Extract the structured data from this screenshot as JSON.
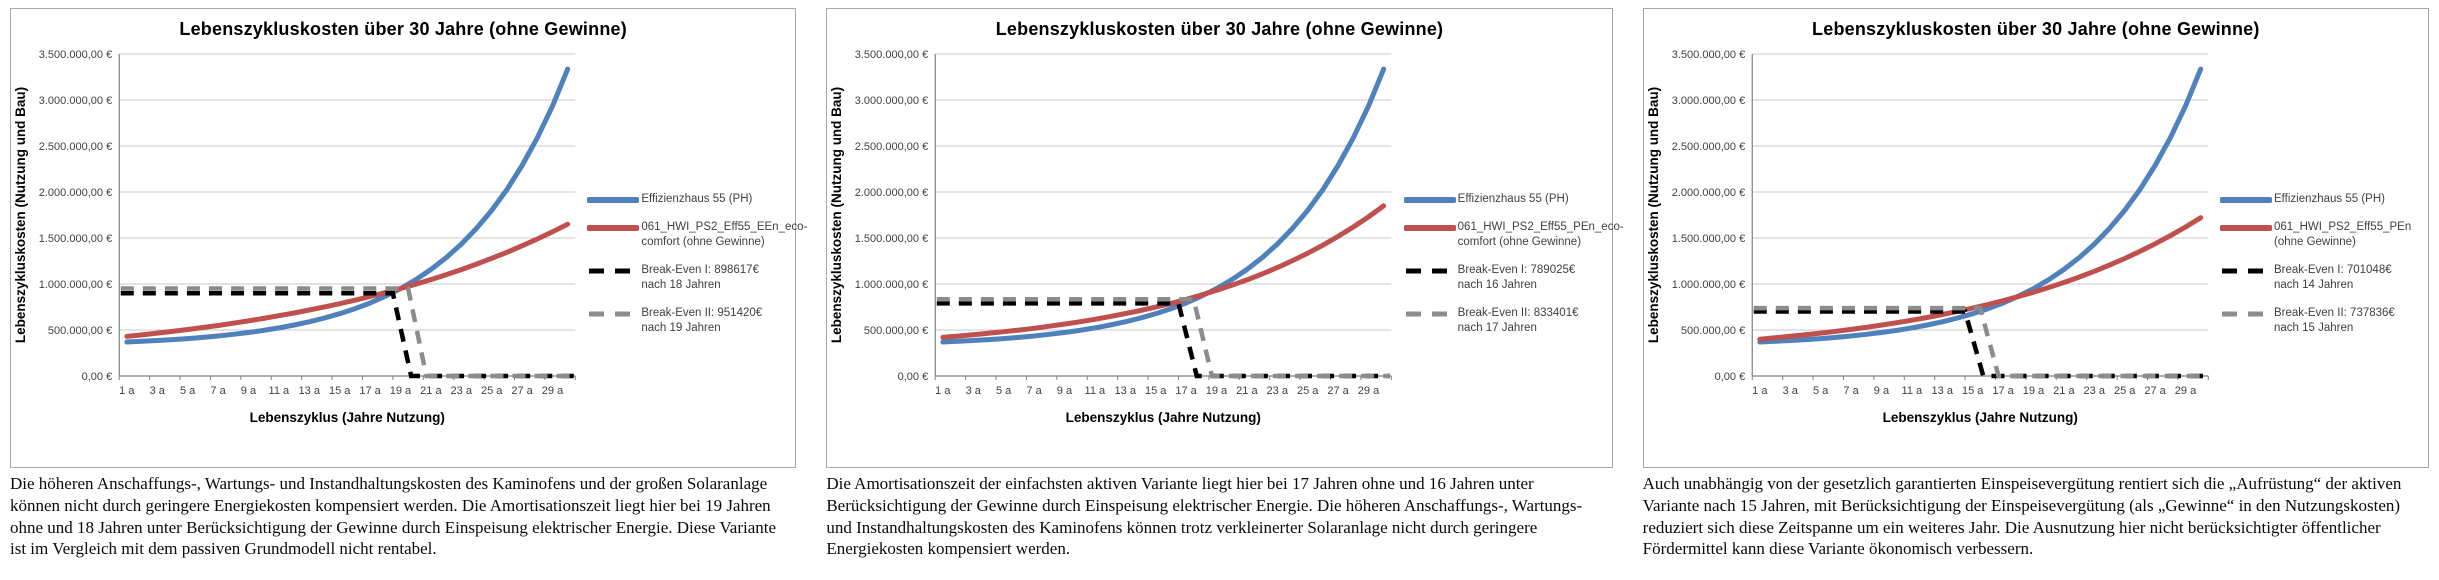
{
  "captions": [
    "Die höheren Anschaffungs-, Wartungs- und Instandhaltungskosten des Kaminofens und der großen Solaranlage können nicht durch geringere Energiekosten kompensiert werden. Die Amortisationszeit liegt hier bei 19 Jahren ohne und 18 Jahren unter Berücksichtigung der Gewinne durch Einspeisung elektrischer Energie. Diese Variante ist im Vergleich mit dem passiven Grundmodell nicht rentabel.",
    "Die Amortisationszeit der einfachsten aktiven Variante liegt hier bei 17 Jahren ohne und 16 Jahren unter Berücksichtigung der Gewinne durch Einspeisung elektrischer Energie. Die höheren Anschaffungs-, Wartungs- und Instandhaltungskosten des Kaminofens können trotz verkleinerter Solaranlage nicht durch geringere Energiekosten kompensiert werden.",
    "Auch unabhängig von der gesetzlich garantierten Einspeisevergütung rentiert sich die „Aufrüstung“ der aktiven Variante nach 15 Jahren, mit Berücksichtigung der Einspeisevergütung (als „Gewinne“ in den Nutzungskosten) reduziert sich diese Zeitspanne um ein weiteres Jahr. Die Ausnutzung hier nicht berücksichtigter öffentlicher Fördermittel kann diese Variante ökonomisch verbessern."
  ],
  "colors": {
    "blue": "#4F81BD",
    "red": "#C0504D",
    "black": "#000000",
    "gray": "#8C8C8C",
    "grid": "#C9C9C9",
    "axis": "#7F7F7F",
    "tick_text": "#404040"
  },
  "chart_data": [
    {
      "type": "line",
      "title": "Lebenszykluskosten über 30 Jahre (ohne Gewinne)",
      "xlabel": "Lebenszyklus (Jahre Nutzung)",
      "ylabel": "Lebenszykluskosten (Nutzung und Bau)",
      "ylim": [
        0,
        3500000
      ],
      "grid": true,
      "legend_position": "right",
      "y_tick_labels": [
        "3.500.000,00 €",
        "3.000.000,00 €",
        "2.500.000,00 €",
        "2.000.000,00 €",
        "1.500.000,00 €",
        "1.000.000,00 €",
        "500.000,00 €",
        "0,00 €"
      ],
      "x_tick_labels": [
        "1 a",
        "3 a",
        "5 a",
        "7 a",
        "9 a",
        "11 a",
        "13 a",
        "15 a",
        "17 a",
        "19 a",
        "21 a",
        "23 a",
        "25 a",
        "27 a",
        "29 a"
      ],
      "x_years": [
        1,
        2,
        3,
        4,
        5,
        6,
        7,
        8,
        9,
        10,
        11,
        12,
        13,
        14,
        15,
        16,
        17,
        18,
        19,
        20,
        21,
        22,
        23,
        24,
        25,
        26,
        27,
        28,
        29,
        30
      ],
      "series": [
        {
          "name": "Effizienzhaus 55 (PH)",
          "color": "#4F81BD",
          "style": "solid",
          "values": [
            370000,
            377000,
            386000,
            396000,
            407000,
            420000,
            435000,
            453000,
            473000,
            496000,
            523000,
            554000,
            589000,
            630000,
            677000,
            732000,
            794000,
            867000,
            950000,
            1047000,
            1158000,
            1286000,
            1434000,
            1604000,
            1800000,
            2027000,
            2288000,
            2589000,
            2936000,
            3336000
          ]
        },
        {
          "name": "061_HWI_PS2_Eff55_EEn_eco-comfort (ohne Gewinne)",
          "color": "#C0504D",
          "style": "solid",
          "values": [
            430000,
            447000,
            466000,
            485000,
            505000,
            527000,
            549000,
            574000,
            599000,
            626000,
            655000,
            685000,
            717000,
            751000,
            786000,
            824000,
            864000,
            906000,
            951000,
            998000,
            1048000,
            1101000,
            1157000,
            1216000,
            1279000,
            1345000,
            1415000,
            1489000,
            1567000,
            1650000
          ]
        },
        {
          "name": "Break-Even I: 898617€ nach 18 Jahren",
          "color": "#000000",
          "style": "dashed",
          "break_even_value": 898617,
          "break_even_year": 18
        },
        {
          "name": "Break-Even II: 951420€ nach 19 Jahren",
          "color": "#8C8C8C",
          "style": "dashed",
          "break_even_value": 951420,
          "break_even_year": 19
        }
      ]
    },
    {
      "type": "line",
      "title": "Lebenszykluskosten über 30 Jahre (ohne Gewinne)",
      "xlabel": "Lebenszyklus (Jahre Nutzung)",
      "ylabel": "Lebenszykluskosten (Nutzung und Bau)",
      "ylim": [
        0,
        3500000
      ],
      "grid": true,
      "legend_position": "right",
      "y_tick_labels": [
        "3.500.000,00 €",
        "3.000.000,00 €",
        "2.500.000,00 €",
        "2.000.000,00 €",
        "1.500.000,00 €",
        "1.000.000,00 €",
        "500.000,00 €",
        "0,00 €"
      ],
      "x_tick_labels": [
        "1 a",
        "3 a",
        "5 a",
        "7 a",
        "9 a",
        "11 a",
        "13 a",
        "15 a",
        "17 a",
        "19 a",
        "21 a",
        "23 a",
        "25 a",
        "27 a",
        "29 a"
      ],
      "x_years": [
        1,
        2,
        3,
        4,
        5,
        6,
        7,
        8,
        9,
        10,
        11,
        12,
        13,
        14,
        15,
        16,
        17,
        18,
        19,
        20,
        21,
        22,
        23,
        24,
        25,
        26,
        27,
        28,
        29,
        30
      ],
      "series": [
        {
          "name": "Effizienzhaus 55 (PH)",
          "color": "#4F81BD",
          "style": "solid",
          "values": [
            370000,
            377000,
            386000,
            396000,
            407000,
            420000,
            435000,
            453000,
            473000,
            496000,
            523000,
            554000,
            589000,
            630000,
            677000,
            732000,
            794000,
            867000,
            950000,
            1047000,
            1158000,
            1286000,
            1434000,
            1604000,
            1800000,
            2027000,
            2288000,
            2589000,
            2936000,
            3336000
          ]
        },
        {
          "name": "061_HWI_PS2_Eff55_PEn_eco-comfort (ohne Gewinne)",
          "color": "#C0504D",
          "style": "solid",
          "values": [
            420000,
            434000,
            448000,
            464000,
            481000,
            499000,
            519000,
            541000,
            564000,
            589000,
            616000,
            646000,
            678000,
            712000,
            749000,
            789000,
            833000,
            880000,
            931000,
            986000,
            1045000,
            1109000,
            1178000,
            1254000,
            1335000,
            1422000,
            1517000,
            1620000,
            1730000,
            1850000
          ]
        },
        {
          "name": "Break-Even I: 789025€ nach 16 Jahren",
          "color": "#000000",
          "style": "dashed",
          "break_even_value": 789025,
          "break_even_year": 16
        },
        {
          "name": "Break-Even II: 833401€ nach 17 Jahren",
          "color": "#8C8C8C",
          "style": "dashed",
          "break_even_value": 833401,
          "break_even_year": 17
        }
      ]
    },
    {
      "type": "line",
      "title": "Lebenszykluskosten über 30 Jahre (ohne Gewinne)",
      "xlabel": "Lebenszyklus (Jahre Nutzung)",
      "ylabel": "Lebenszykluskosten (Nutzung und Bau)",
      "ylim": [
        0,
        3500000
      ],
      "grid": true,
      "legend_position": "right",
      "y_tick_labels": [
        "3.500.000,00 €",
        "3.000.000,00 €",
        "2.500.000,00 €",
        "2.000.000,00 €",
        "1.500.000,00 €",
        "1.000.000,00 €",
        "500.000,00 €",
        "0,00 €"
      ],
      "x_tick_labels": [
        "1 a",
        "3 a",
        "5 a",
        "7 a",
        "9 a",
        "11 a",
        "13 a",
        "15 a",
        "17 a",
        "19 a",
        "21 a",
        "23 a",
        "25 a",
        "27 a",
        "29 a"
      ],
      "x_years": [
        1,
        2,
        3,
        4,
        5,
        6,
        7,
        8,
        9,
        10,
        11,
        12,
        13,
        14,
        15,
        16,
        17,
        18,
        19,
        20,
        21,
        22,
        23,
        24,
        25,
        26,
        27,
        28,
        29,
        30
      ],
      "series": [
        {
          "name": "Effizienzhaus 55 (PH)",
          "color": "#4F81BD",
          "style": "solid",
          "values": [
            370000,
            377000,
            386000,
            396000,
            407000,
            420000,
            435000,
            453000,
            473000,
            496000,
            523000,
            554000,
            589000,
            630000,
            677000,
            732000,
            794000,
            867000,
            950000,
            1047000,
            1158000,
            1286000,
            1434000,
            1604000,
            1800000,
            2027000,
            2288000,
            2589000,
            2936000,
            3336000
          ]
        },
        {
          "name": "061_HWI_PS2_Eff55_PEn (ohne Gewinne)",
          "color": "#C0504D",
          "style": "solid",
          "values": [
            400000,
            415000,
            431000,
            448000,
            466000,
            486000,
            507000,
            529000,
            553000,
            579000,
            607000,
            636000,
            668000,
            702000,
            738000,
            777000,
            818000,
            863000,
            911000,
            962000,
            1016000,
            1075000,
            1138000,
            1205000,
            1277000,
            1354000,
            1437000,
            1525000,
            1620000,
            1721000
          ]
        },
        {
          "name": "Break-Even I: 701048€ nach 14 Jahren",
          "color": "#000000",
          "style": "dashed",
          "break_even_value": 701048,
          "break_even_year": 14
        },
        {
          "name": "Break-Even II: 737836€ nach 15 Jahren",
          "color": "#8C8C8C",
          "style": "dashed",
          "break_even_value": 737836,
          "break_even_year": 15
        }
      ]
    }
  ]
}
